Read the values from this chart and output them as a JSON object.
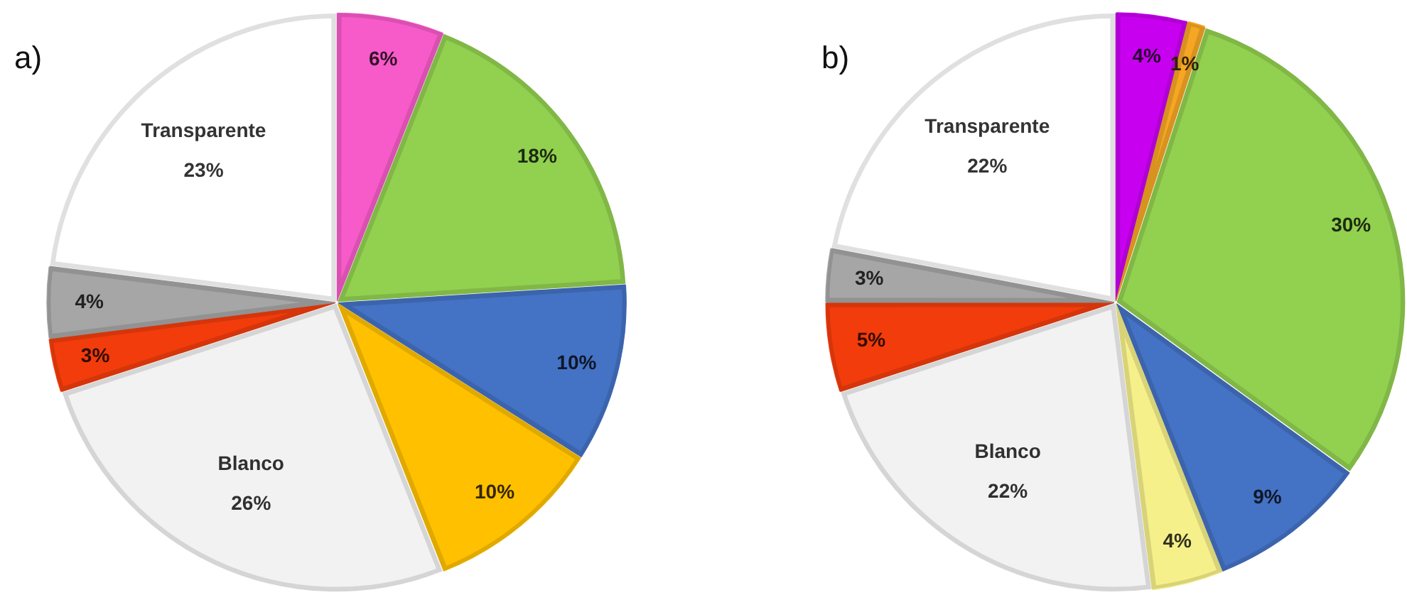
{
  "chart_data": [
    {
      "type": "pie",
      "title": "a)",
      "categories": [
        null,
        null,
        null,
        null,
        "Blanco",
        null,
        null,
        "Transparente"
      ],
      "values": [
        6,
        18,
        10,
        10,
        26,
        3,
        4,
        23
      ],
      "colors": [
        "#f75bc9",
        "#92d050",
        "#4472c4",
        "#ffc000",
        "#f2f2f2",
        "#f23c0c",
        "#a6a6a6",
        "#ffffff"
      ],
      "value_labels": [
        "6%",
        "18%",
        "10%",
        "10%",
        "26%",
        "3%",
        "4%",
        "23%"
      ],
      "legend": false
    },
    {
      "type": "pie",
      "title": "b)",
      "categories": [
        null,
        null,
        null,
        null,
        null,
        "Blanco",
        null,
        null,
        "Transparente"
      ],
      "values": [
        4,
        1,
        30,
        9,
        4,
        22,
        5,
        3,
        22
      ],
      "colors": [
        "#c800f0",
        "#f5a623",
        "#92d050",
        "#4472c4",
        "#f5f08a",
        "#f2f2f2",
        "#f23c0c",
        "#a6a6a6",
        "#ffffff"
      ],
      "value_labels": [
        "4%",
        "1%",
        "30%",
        "9%",
        "4%",
        "22%",
        "5%",
        "3%",
        "22%"
      ],
      "legend": false
    }
  ]
}
